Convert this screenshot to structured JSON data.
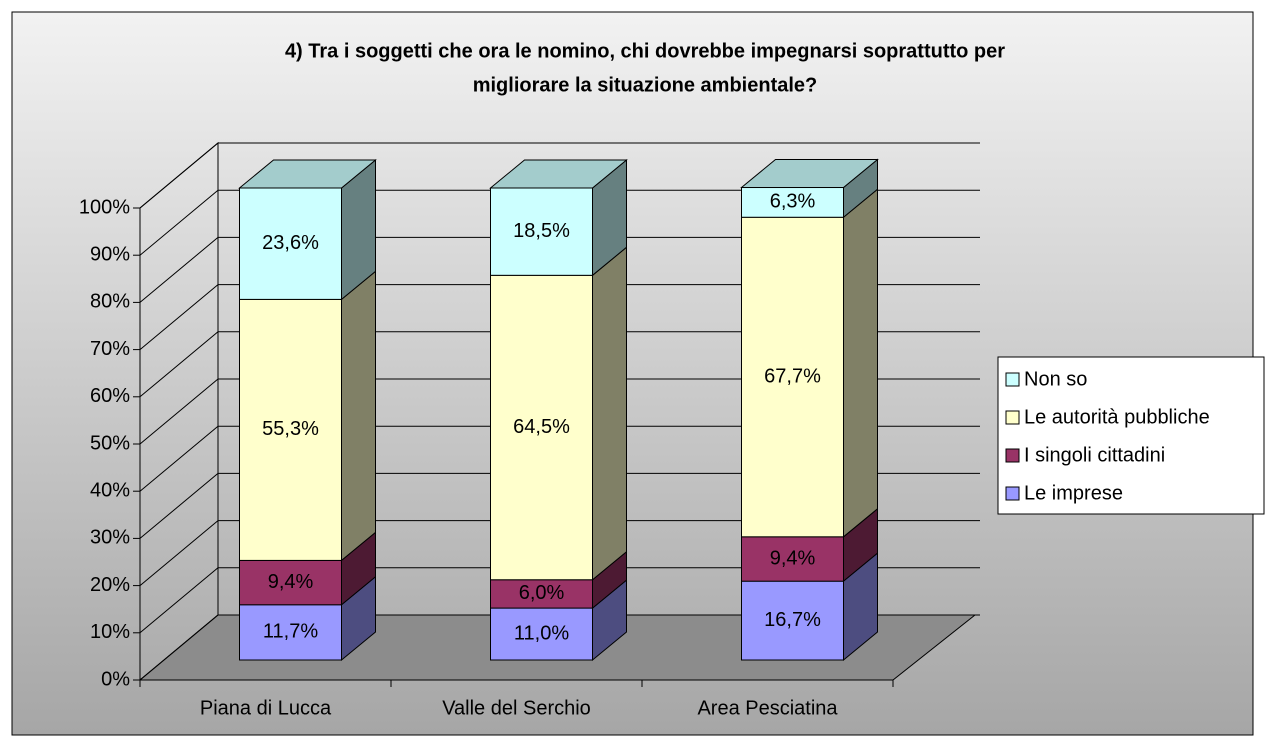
{
  "chart_data": {
    "type": "stacked-bar-3d",
    "title": [
      "4) Tra i soggetti che ora le nomino, chi dovrebbe impegnarsi soprattutto per",
      "migliorare la situazione ambientale?"
    ],
    "categories": [
      "Piana di Lucca",
      "Valle del Serchio",
      "Area Pesciatina"
    ],
    "series": [
      {
        "name": "Le imprese",
        "color": "#9999ff",
        "values": [
          11.7,
          11.0,
          16.7
        ],
        "value_labels": [
          "11,7%",
          "11,0%",
          "16,7%"
        ]
      },
      {
        "name": "I singoli cittadini",
        "color": "#993366",
        "values": [
          9.4,
          6.0,
          9.4
        ],
        "value_labels": [
          "9,4%",
          "6,0%",
          "9,4%"
        ]
      },
      {
        "name": "Le autorità pubbliche",
        "color": "#ffffcc",
        "values": [
          55.3,
          64.5,
          67.7
        ],
        "value_labels": [
          "55,3%",
          "64,5%",
          "67,7%"
        ]
      },
      {
        "name": "Non so",
        "color": "#ccffff",
        "values": [
          23.6,
          18.5,
          6.3
        ],
        "value_labels": [
          "23,6%",
          "18,5%",
          "6,3%"
        ]
      }
    ],
    "ylim": [
      0,
      100
    ],
    "yticks": [
      {
        "value": 0,
        "label": "0%"
      },
      {
        "value": 10,
        "label": "10%"
      },
      {
        "value": 20,
        "label": "20%"
      },
      {
        "value": 30,
        "label": "30%"
      },
      {
        "value": 40,
        "label": "40%"
      },
      {
        "value": 50,
        "label": "50%"
      },
      {
        "value": 60,
        "label": "60%"
      },
      {
        "value": 70,
        "label": "70%"
      },
      {
        "value": 80,
        "label": "80%"
      },
      {
        "value": 90,
        "label": "90%"
      },
      {
        "value": 100,
        "label": "100%"
      }
    ],
    "grid": true,
    "legend": "right"
  }
}
